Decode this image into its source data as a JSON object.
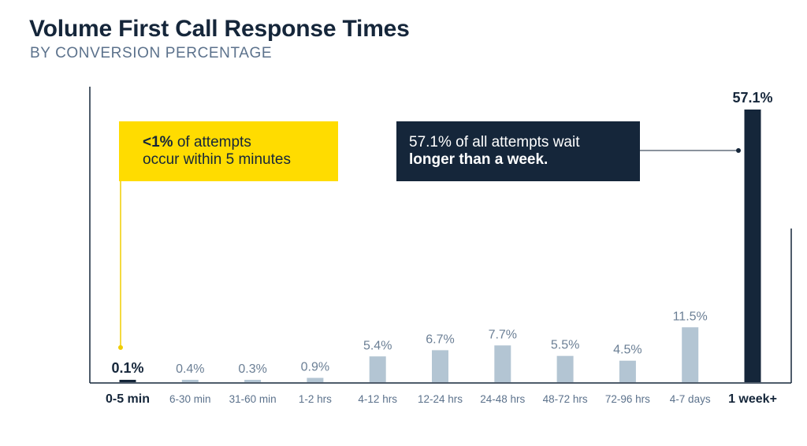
{
  "colors": {
    "highlight_bar": "#15263a",
    "bar": "#b3c5d3",
    "axis": "#15263a",
    "yellow": "#ffdc00",
    "yellow_line": "#f0cd00"
  },
  "callouts": {
    "yellow": {
      "bold": "<1%",
      "rest_line1": " of attempts",
      "line2": "occur within 5 minutes"
    },
    "navy": {
      "line1": "57.1% of all attempts wait",
      "bold_line2": "longer than a week."
    }
  },
  "chart_data": {
    "type": "bar",
    "title": "Volume First Call Response Times",
    "subtitle": "BY CONVERSION PERCENTAGE",
    "xlabel": "",
    "ylabel": "",
    "categories": [
      "0-5 min",
      "6-30 min",
      "31-60 min",
      "1-2 hrs",
      "4-12 hrs",
      "12-24 hrs",
      "24-48 hrs",
      "48-72 hrs",
      "72-96 hrs",
      "4-7 days",
      "1 week+"
    ],
    "values": [
      0.1,
      0.4,
      0.3,
      0.9,
      5.4,
      6.7,
      7.7,
      5.5,
      4.5,
      11.5,
      57.1
    ],
    "data_labels": [
      "0.1%",
      "0.4%",
      "0.3%",
      "0.9%",
      "5.4%",
      "6.7%",
      "7.7%",
      "5.5%",
      "4.5%",
      "11.5%",
      "57.1%"
    ],
    "highlighted": [
      "0-5 min",
      "1 week+"
    ],
    "ylim": [
      0,
      60
    ],
    "grid": false,
    "legend": "none"
  }
}
